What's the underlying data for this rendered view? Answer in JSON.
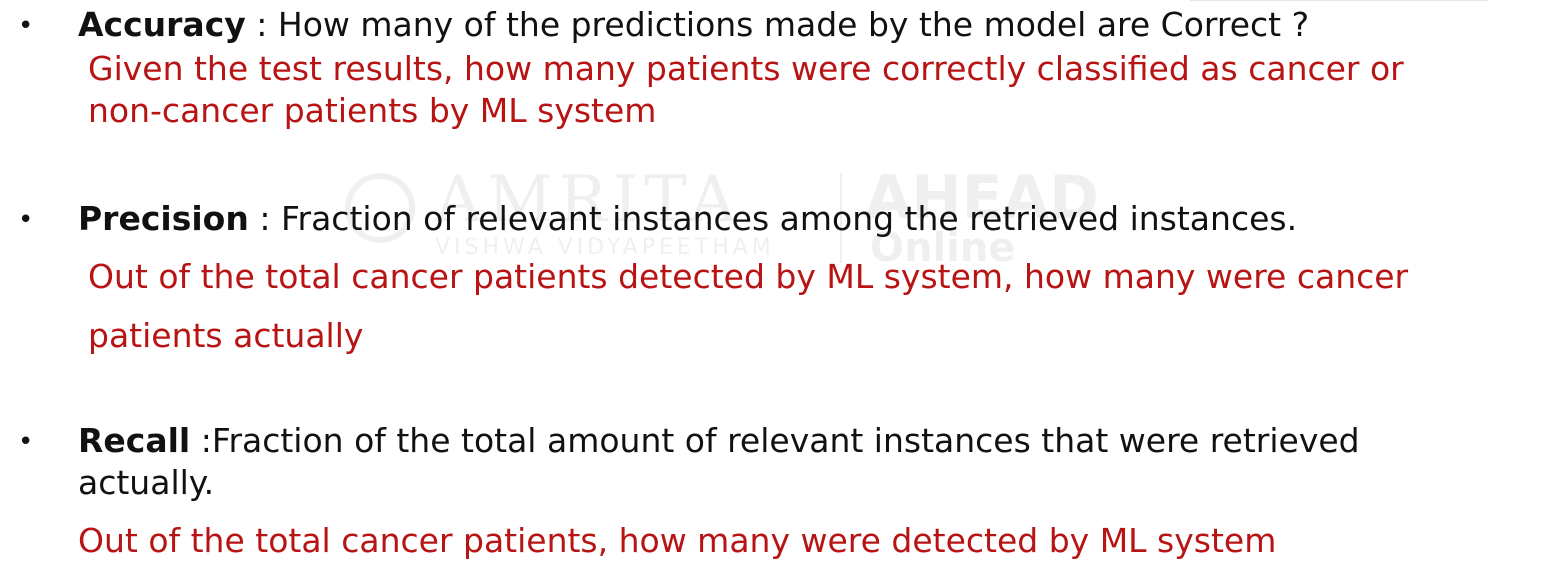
{
  "watermark": {
    "brand": "AMRITA",
    "subtitle": "VISHWA VIDYAPEETHAM",
    "ahead": "AHEAD",
    "online": "Online"
  },
  "items": [
    {
      "bullet": "•",
      "term": "Accuracy",
      "definition": " : How many of the predictions made by the model are  Correct  ?",
      "definition_cont": "",
      "example_lines": [
        "Given the test results, how many patients were correctly classified as cancer or",
        "non-cancer patients by ML system"
      ]
    },
    {
      "bullet": "•",
      "term": "Precision",
      "definition": " : Fraction of relevant instances among the  retrieved instances.",
      "definition_cont": "",
      "example_lines": [
        "Out of the total cancer patients detected by ML system, how many were cancer",
        "patients actually"
      ]
    },
    {
      "bullet": "•",
      "term": "Recall",
      "definition": " :Fraction of the total amount of relevant instances  that were retrieved",
      "definition_cont": "actually.",
      "example_lines": [
        "Out of the total cancer patients, how many were detected by ML system"
      ]
    }
  ]
}
